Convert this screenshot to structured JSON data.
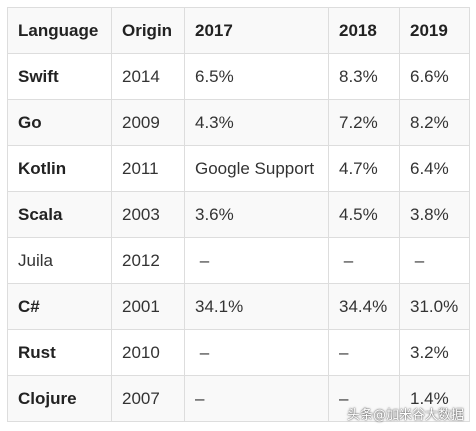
{
  "table": {
    "headers": [
      "Language",
      "Origin",
      "2017",
      "2018",
      "2019"
    ],
    "rows": [
      {
        "language": "Swift",
        "origin": "2014",
        "y2017": "6.5%",
        "y2018": "8.3%",
        "y2019": "6.6%"
      },
      {
        "language": "Go",
        "origin": "2009",
        "y2017": "4.3%",
        "y2018": "7.2%",
        "y2019": "8.2%"
      },
      {
        "language": "Kotlin",
        "origin": "2011",
        "y2017": "Google Support",
        "y2018": "4.7%",
        "y2019": "6.4%"
      },
      {
        "language": "Scala",
        "origin": "2003",
        "y2017": "3.6%",
        "y2018": "4.5%",
        "y2019": "3.8%"
      },
      {
        "language": "Juila",
        "origin": "2012",
        "y2017": " –",
        "y2018": " –",
        "y2019": " –"
      },
      {
        "language": "C#",
        "origin": "2001",
        "y2017": "34.1%",
        "y2018": "34.4%",
        "y2019": "31.0%"
      },
      {
        "language": "Rust",
        "origin": "2010",
        "y2017": " –",
        "y2018": "–",
        "y2019": "3.2%"
      },
      {
        "language": "Clojure",
        "origin": "2007",
        "y2017": "–",
        "y2018": "–",
        "y2019": "1.4%"
      }
    ]
  },
  "watermark": "头条@加米谷大数据"
}
